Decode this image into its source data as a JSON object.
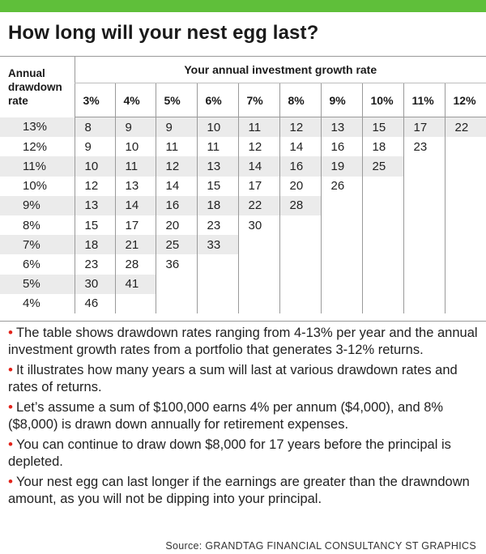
{
  "header": {
    "title": "How long will your nest egg last?"
  },
  "colors": {
    "accent_bar": "#5fbf3a",
    "bullet": "#e2231a",
    "row_shade": "#ebebeb"
  },
  "table": {
    "drawdown_header": [
      "Annual",
      "drawdown",
      "rate"
    ],
    "growth_header": "Your annual investment growth rate",
    "growth_rates": [
      "3%",
      "4%",
      "5%",
      "6%",
      "7%",
      "8%",
      "9%",
      "10%",
      "11%",
      "12%"
    ],
    "rows": [
      {
        "rate": "13%",
        "values": [
          "8",
          "9",
          "9",
          "10",
          "11",
          "12",
          "13",
          "15",
          "17",
          "22"
        ]
      },
      {
        "rate": "12%",
        "values": [
          "9",
          "10",
          "11",
          "11",
          "12",
          "14",
          "16",
          "18",
          "23",
          ""
        ]
      },
      {
        "rate": "11%",
        "values": [
          "10",
          "11",
          "12",
          "13",
          "14",
          "16",
          "19",
          "25",
          "",
          ""
        ]
      },
      {
        "rate": "10%",
        "values": [
          "12",
          "13",
          "14",
          "15",
          "17",
          "20",
          "26",
          "",
          "",
          ""
        ]
      },
      {
        "rate": "9%",
        "values": [
          "13",
          "14",
          "16",
          "18",
          "22",
          "28",
          "",
          "",
          "",
          ""
        ]
      },
      {
        "rate": "8%",
        "values": [
          "15",
          "17",
          "20",
          "23",
          "30",
          "",
          "",
          "",
          "",
          ""
        ]
      },
      {
        "rate": "7%",
        "values": [
          "18",
          "21",
          "25",
          "33",
          "",
          "",
          "",
          "",
          "",
          ""
        ]
      },
      {
        "rate": "6%",
        "values": [
          "23",
          "28",
          "36",
          "",
          "",
          "",
          "",
          "",
          "",
          ""
        ]
      },
      {
        "rate": "5%",
        "values": [
          "30",
          "41",
          "",
          "",
          "",
          "",
          "",
          "",
          "",
          ""
        ]
      },
      {
        "rate": "4%",
        "values": [
          "46",
          "",
          "",
          "",
          "",
          "",
          "",
          "",
          "",
          ""
        ]
      }
    ]
  },
  "notes": {
    "bullet_glyph": "•",
    "items": [
      "The table shows drawdown rates ranging from 4-13% per year and the annual investment growth rates from a portfolio that generates 3-12% returns.",
      "It illustrates how many years a sum will last at various drawdown rates and rates of returns.",
      "Let’s assume a sum of $100,000 earns 4% per annum ($4,000), and 8% ($8,000) is drawn down annually for retirement expenses.",
      "You can continue to draw down $8,000 for 17 years before the principal is depleted.",
      "Your nest egg can last longer if the earnings are greater than the drawndown amount, as you will not be dipping into your principal."
    ]
  },
  "footer": {
    "source": "Source: GRANDTAG FINANCIAL CONSULTANCY   ST GRAPHICS"
  }
}
